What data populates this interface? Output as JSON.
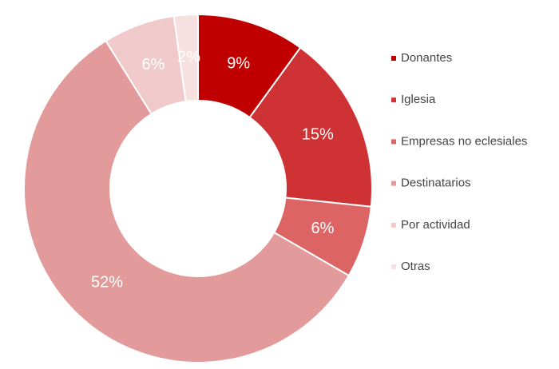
{
  "chart_data": {
    "type": "donut",
    "categories": [
      "Donantes",
      "Iglesia",
      "Empresas no eclesiales",
      "Destinatarios",
      "Por actividad",
      "Otras"
    ],
    "values": [
      9,
      15,
      6,
      52,
      6,
      2
    ],
    "value_labels": [
      "9%",
      "15%",
      "6%",
      "52%",
      "6%",
      "2%"
    ],
    "colors": [
      "#c00000",
      "#cf3235",
      "#dc6464",
      "#e39a9a",
      "#f0caca",
      "#f7e0e0"
    ],
    "legend": "right"
  }
}
